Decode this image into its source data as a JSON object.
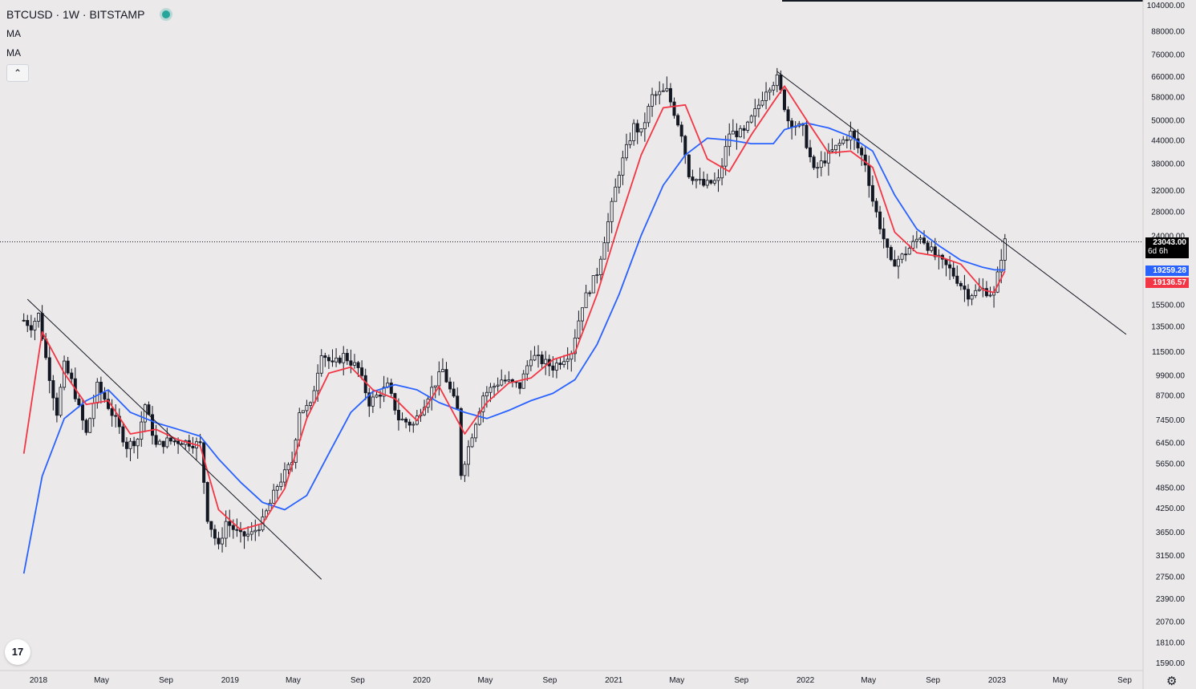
{
  "header": {
    "symbol": "BTCUSD · 1W · BITSTAMP",
    "ma1_label": "MA",
    "ma2_label": "MA",
    "collapse_icon": "chevron-up-icon"
  },
  "price_tags": {
    "last_price": "23043.00",
    "countdown": "6d 6h",
    "ma_blue": "19259.28",
    "ma_red": "19136.57"
  },
  "colors": {
    "background": "#ebe9e9",
    "candle": "#131722",
    "ma_fast": "#f23645",
    "ma_slow": "#2962ff",
    "trendline": "#131722",
    "last_price_bg": "#000000"
  },
  "chart_data": {
    "type": "candlestick",
    "symbol": "BTCUSD",
    "interval": "1W",
    "exchange": "BITSTAMP",
    "scale": "log",
    "y_ticks": [
      104000,
      88000,
      76000,
      66000,
      58000,
      50000,
      44000,
      38000,
      32000,
      28000,
      24000,
      15500,
      13500,
      11500,
      9900,
      8700,
      7450,
      6450,
      5650,
      4850,
      4250,
      3650,
      3150,
      2750,
      2390,
      2070,
      1810,
      1590
    ],
    "y_tick_labels": [
      "104000.00",
      "88000.00",
      "76000.00",
      "66000.00",
      "58000.00",
      "50000.00",
      "44000.00",
      "38000.00",
      "32000.00",
      "28000.00",
      "24000.00",
      "15500.00",
      "13500.00",
      "11500.00",
      "9900.00",
      "8700.00",
      "7450.00",
      "6450.00",
      "5650.00",
      "4850.00",
      "4250.00",
      "3650.00",
      "3150.00",
      "2750.00",
      "2390.00",
      "2070.00",
      "1810.00",
      "1590.00"
    ],
    "x_ticks": [
      "2018-01-01",
      "2018-05-01",
      "2018-09-01",
      "2019-01-01",
      "2019-05-01",
      "2019-09-01",
      "2020-01-01",
      "2020-05-01",
      "2020-09-01",
      "2021-01-01",
      "2021-05-01",
      "2021-09-01",
      "2022-01-01",
      "2022-05-01",
      "2022-09-01",
      "2023-01-01",
      "2023-05-01",
      "2023-09-01"
    ],
    "x_tick_labels": [
      "2018",
      "May",
      "Sep",
      "2019",
      "May",
      "Sep",
      "2020",
      "May",
      "Sep",
      "2021",
      "May",
      "Sep",
      "2022",
      "May",
      "Sep",
      "2023",
      "May",
      "Sep"
    ],
    "close_path": [
      [
        "2017-12-04",
        14000
      ],
      [
        "2017-12-18",
        13500
      ],
      [
        "2018-01-01",
        14500
      ],
      [
        "2018-01-15",
        11000
      ],
      [
        "2018-02-05",
        7800
      ],
      [
        "2018-02-19",
        10500
      ],
      [
        "2018-03-05",
        9500
      ],
      [
        "2018-03-19",
        8000
      ],
      [
        "2018-04-02",
        6800
      ],
      [
        "2018-04-23",
        9200
      ],
      [
        "2018-05-07",
        8500
      ],
      [
        "2018-05-28",
        7400
      ],
      [
        "2018-06-18",
        6300
      ],
      [
        "2018-07-09",
        6600
      ],
      [
        "2018-07-23",
        8200
      ],
      [
        "2018-08-13",
        6300
      ],
      [
        "2018-09-03",
        6500
      ],
      [
        "2018-10-01",
        6500
      ],
      [
        "2018-11-05",
        6350
      ],
      [
        "2018-11-19",
        4000
      ],
      [
        "2018-12-10",
        3300
      ],
      [
        "2018-12-24",
        3900
      ],
      [
        "2019-01-21",
        3550
      ],
      [
        "2019-02-11",
        3600
      ],
      [
        "2019-03-04",
        3900
      ],
      [
        "2019-04-01",
        4900
      ],
      [
        "2019-04-29",
        5700
      ],
      [
        "2019-05-13",
        7900
      ],
      [
        "2019-06-03",
        8100
      ],
      [
        "2019-06-24",
        11500
      ],
      [
        "2019-07-15",
        10500
      ],
      [
        "2019-08-05",
        11200
      ],
      [
        "2019-09-02",
        10300
      ],
      [
        "2019-09-23",
        8300
      ],
      [
        "2019-10-28",
        9200
      ],
      [
        "2019-11-18",
        7500
      ],
      [
        "2019-12-16",
        7200
      ],
      [
        "2020-01-13",
        8700
      ],
      [
        "2020-02-10",
        10200
      ],
      [
        "2020-03-09",
        7900
      ],
      [
        "2020-03-16",
        5300
      ],
      [
        "2020-04-06",
        6800
      ],
      [
        "2020-04-27",
        8700
      ],
      [
        "2020-06-01",
        9600
      ],
      [
        "2020-07-06",
        9200
      ],
      [
        "2020-07-27",
        11200
      ],
      [
        "2020-09-07",
        10400
      ],
      [
        "2020-10-12",
        11500
      ],
      [
        "2020-11-02",
        15500
      ],
      [
        "2020-11-30",
        19000
      ],
      [
        "2020-12-28",
        29000
      ],
      [
        "2021-01-11",
        36000
      ],
      [
        "2021-02-08",
        48000
      ],
      [
        "2021-02-22",
        46000
      ],
      [
        "2021-03-15",
        58000
      ],
      [
        "2021-04-12",
        60000
      ],
      [
        "2021-05-10",
        46000
      ],
      [
        "2021-05-24",
        35500
      ],
      [
        "2021-06-21",
        33000
      ],
      [
        "2021-07-19",
        34000
      ],
      [
        "2021-08-09",
        46000
      ],
      [
        "2021-09-06",
        46000
      ],
      [
        "2021-10-04",
        55000
      ],
      [
        "2021-10-18",
        61000
      ],
      [
        "2021-11-08",
        65000
      ],
      [
        "2021-11-29",
        50000
      ],
      [
        "2021-12-27",
        47000
      ],
      [
        "2022-01-17",
        36000
      ],
      [
        "2022-02-14",
        40000
      ],
      [
        "2022-03-28",
        46000
      ],
      [
        "2022-04-25",
        38000
      ],
      [
        "2022-05-09",
        30000
      ],
      [
        "2022-06-13",
        20000
      ],
      [
        "2022-07-04",
        21000
      ],
      [
        "2022-08-08",
        24000
      ],
      [
        "2022-09-05",
        21000
      ],
      [
        "2022-10-03",
        19300
      ],
      [
        "2022-11-07",
        16500
      ],
      [
        "2022-12-05",
        17000
      ],
      [
        "2022-12-26",
        16500
      ],
      [
        "2023-01-09",
        21000
      ],
      [
        "2023-01-16",
        23043
      ]
    ],
    "ma_fast_path": [
      [
        "2017-12-04",
        6000
      ],
      [
        "2018-01-08",
        13000
      ],
      [
        "2018-02-19",
        10000
      ],
      [
        "2018-04-02",
        8200
      ],
      [
        "2018-05-14",
        8400
      ],
      [
        "2018-06-25",
        6800
      ],
      [
        "2018-08-13",
        7000
      ],
      [
        "2018-09-24",
        6550
      ],
      [
        "2018-11-05",
        6300
      ],
      [
        "2018-12-10",
        4200
      ],
      [
        "2019-01-21",
        3700
      ],
      [
        "2019-03-04",
        3850
      ],
      [
        "2019-04-15",
        4800
      ],
      [
        "2019-05-27",
        7500
      ],
      [
        "2019-07-08",
        10000
      ],
      [
        "2019-08-19",
        10400
      ],
      [
        "2019-09-30",
        9000
      ],
      [
        "2019-11-11",
        8500
      ],
      [
        "2019-12-23",
        7400
      ],
      [
        "2020-02-03",
        9200
      ],
      [
        "2020-03-23",
        6800
      ],
      [
        "2020-05-04",
        8300
      ],
      [
        "2020-06-15",
        9400
      ],
      [
        "2020-07-27",
        9700
      ],
      [
        "2020-09-07",
        10900
      ],
      [
        "2020-10-19",
        11400
      ],
      [
        "2020-11-30",
        16500
      ],
      [
        "2021-01-11",
        26000
      ],
      [
        "2021-02-22",
        40000
      ],
      [
        "2021-04-05",
        54000
      ],
      [
        "2021-05-17",
        55000
      ],
      [
        "2021-06-28",
        39000
      ],
      [
        "2021-08-09",
        36000
      ],
      [
        "2021-09-20",
        45500
      ],
      [
        "2021-11-01",
        56000
      ],
      [
        "2021-11-22",
        62000
      ],
      [
        "2022-01-03",
        50000
      ],
      [
        "2022-02-14",
        40500
      ],
      [
        "2022-03-28",
        41000
      ],
      [
        "2022-05-09",
        37000
      ],
      [
        "2022-06-20",
        24500
      ],
      [
        "2022-08-01",
        21500
      ],
      [
        "2022-09-12",
        21000
      ],
      [
        "2022-10-24",
        20000
      ],
      [
        "2022-12-05",
        17000
      ],
      [
        "2022-12-26",
        16700
      ],
      [
        "2023-01-16",
        19136.57
      ]
    ],
    "ma_slow_path": [
      [
        "2017-12-04",
        2800
      ],
      [
        "2018-01-08",
        5200
      ],
      [
        "2018-02-19",
        7500
      ],
      [
        "2018-04-02",
        8400
      ],
      [
        "2018-05-14",
        9000
      ],
      [
        "2018-06-25",
        7800
      ],
      [
        "2018-08-13",
        7300
      ],
      [
        "2018-09-24",
        7000
      ],
      [
        "2018-11-05",
        6700
      ],
      [
        "2018-12-10",
        5800
      ],
      [
        "2019-01-21",
        5000
      ],
      [
        "2019-03-04",
        4400
      ],
      [
        "2019-04-15",
        4200
      ],
      [
        "2019-05-27",
        4600
      ],
      [
        "2019-07-08",
        6000
      ],
      [
        "2019-08-19",
        7800
      ],
      [
        "2019-09-30",
        8900
      ],
      [
        "2019-11-11",
        9300
      ],
      [
        "2019-12-23",
        9000
      ],
      [
        "2020-02-03",
        8300
      ],
      [
        "2020-03-23",
        7800
      ],
      [
        "2020-05-04",
        7500
      ],
      [
        "2020-06-15",
        7900
      ],
      [
        "2020-07-27",
        8400
      ],
      [
        "2020-09-07",
        8800
      ],
      [
        "2020-10-19",
        9600
      ],
      [
        "2020-11-30",
        12000
      ],
      [
        "2021-01-11",
        16500
      ],
      [
        "2021-02-22",
        24000
      ],
      [
        "2021-04-05",
        33000
      ],
      [
        "2021-05-17",
        40000
      ],
      [
        "2021-06-28",
        44500
      ],
      [
        "2021-08-09",
        44000
      ],
      [
        "2021-09-20",
        43000
      ],
      [
        "2021-11-01",
        43000
      ],
      [
        "2021-11-22",
        47000
      ],
      [
        "2022-01-03",
        49000
      ],
      [
        "2022-02-14",
        47500
      ],
      [
        "2022-03-28",
        45000
      ],
      [
        "2022-05-09",
        41000
      ],
      [
        "2022-06-20",
        31000
      ],
      [
        "2022-08-01",
        25000
      ],
      [
        "2022-09-12",
        22500
      ],
      [
        "2022-10-24",
        20500
      ],
      [
        "2022-12-05",
        19600
      ],
      [
        "2022-12-26",
        19300
      ],
      [
        "2023-01-16",
        19259.28
      ]
    ],
    "trendlines": [
      {
        "from": [
          "2017-12-11",
          16000
        ],
        "to": [
          "2019-06-24",
          2700
        ]
      },
      {
        "from": [
          "2021-11-08",
          68000
        ],
        "to": [
          "2023-09-04",
          12800
        ]
      }
    ],
    "last_price": 23043
  }
}
